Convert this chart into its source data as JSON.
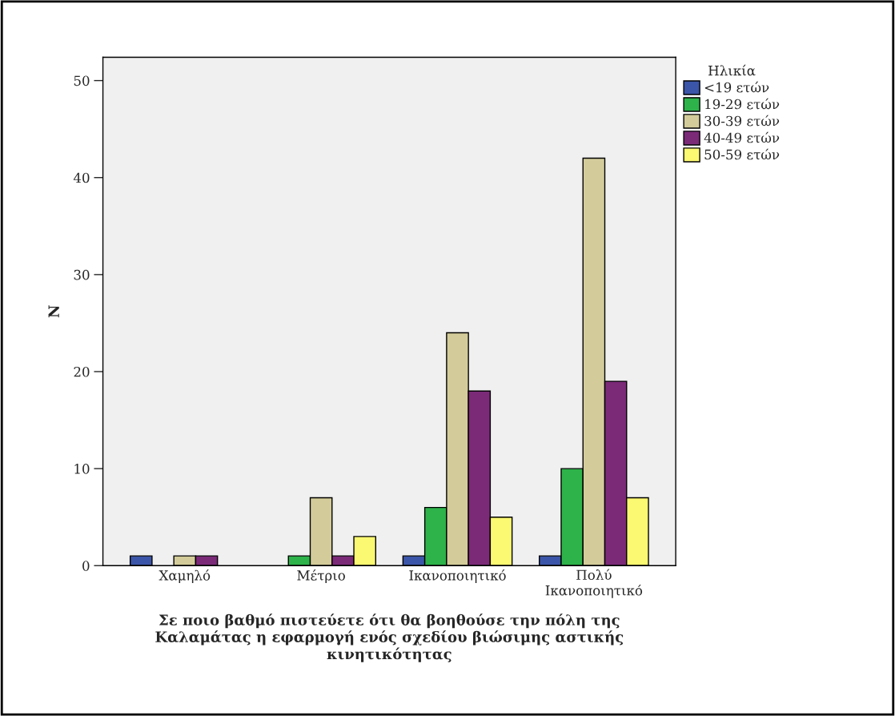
{
  "chart_data": {
    "type": "bar",
    "xlabel": "Σε ποιο βαθμό πιστεύετε ότι θα βοηθούσε την πόλη της\nΚαλαμάτας η εφαρμογή ενός σχεδίου βιώσιμης αστικής\nκινητικότητας",
    "ylabel": "N",
    "legend_title": "Ηλικία",
    "categories": [
      "Χαμηλό",
      "Μέτριο",
      "Ικανοποιητικό",
      "Πολύ\nΙκανοποιητικό"
    ],
    "series": [
      {
        "name": "<19 ετών",
        "color": "#3b55a8",
        "values": [
          1,
          null,
          1,
          1
        ]
      },
      {
        "name": "19-29 ετών",
        "color": "#2db34a",
        "values": [
          null,
          1,
          6,
          10
        ]
      },
      {
        "name": "30-39 ετών",
        "color": "#d3cc9a",
        "values": [
          1,
          7,
          24,
          42
        ]
      },
      {
        "name": "40-49 ετών",
        "color": "#7b2a78",
        "values": [
          1,
          1,
          18,
          19
        ]
      },
      {
        "name": "50-59 ετών",
        "color": "#fbf871",
        "values": [
          null,
          3,
          5,
          7
        ]
      }
    ],
    "ylim": [
      0,
      52.4
    ],
    "yticks": [
      0,
      10,
      20,
      30,
      40,
      50
    ],
    "grid": false,
    "legend": "top right"
  }
}
